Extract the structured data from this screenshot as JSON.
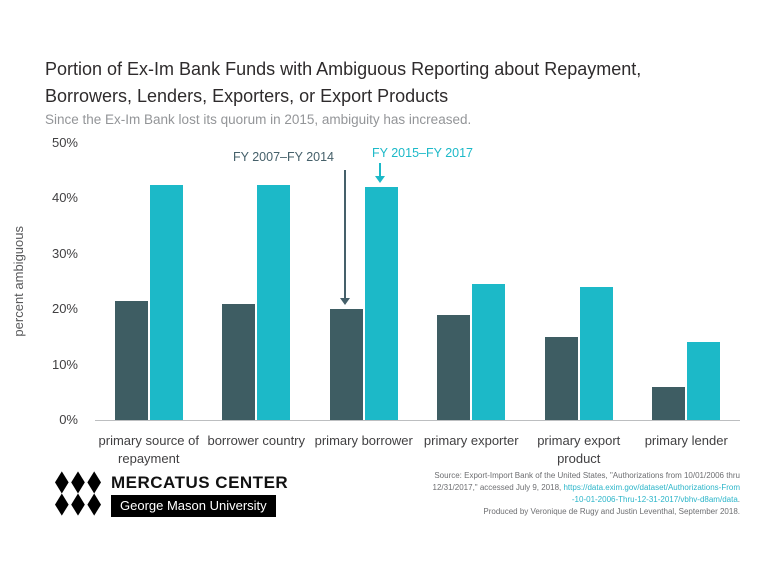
{
  "header": {
    "title_line1": "Portion of Ex-Im Bank Funds with Ambiguous Reporting about Repayment,",
    "title_line2": "Borrowers, Lenders, Exporters, or Export Products",
    "subtitle": "Since the Ex-Im Bank lost its quorum in 2015, ambiguity has increased."
  },
  "chart_data": {
    "type": "bar",
    "categories": [
      "primary source of repayment",
      "borrower country",
      "primary borrower",
      "primary exporter",
      "primary export product",
      "primary lender"
    ],
    "series": [
      {
        "name": "FY 2007–FY 2014",
        "color": "#3e5d63",
        "values": [
          21.5,
          21,
          20,
          19,
          15,
          6
        ]
      },
      {
        "name": "FY 2015–FY 2017",
        "color": "#1cb9c8",
        "values": [
          42.5,
          42.5,
          42,
          24.5,
          24,
          14
        ]
      }
    ],
    "ylabel": "percent ambiguous",
    "xlabel": "",
    "ylim": [
      0,
      50
    ],
    "yticks": [
      "50%",
      "40%",
      "30%",
      "20%",
      "10%",
      "0%"
    ],
    "grid": false,
    "legend_position": "annotations with arrows above the primary-borrower group"
  },
  "footer": {
    "logo": {
      "line1": "MERCATUS CENTER",
      "line2": "George Mason University"
    },
    "source": {
      "line1": "Source: Export-Import Bank of the United States, \"Authorizations from 10/01/2006 thru",
      "line2_text": "12/31/2017,\" accessed July 9, 2018, ",
      "line2_link": "https://data.exim.gov/dataset/Authorizations-From",
      "line3_link": "-10-01-2006-Thru-12-31-2017/vbhv-d8am/data",
      "line3_text": ".",
      "line4": "Produced by Veronique de Rugy and Justin Leventhal, September 2018."
    }
  }
}
